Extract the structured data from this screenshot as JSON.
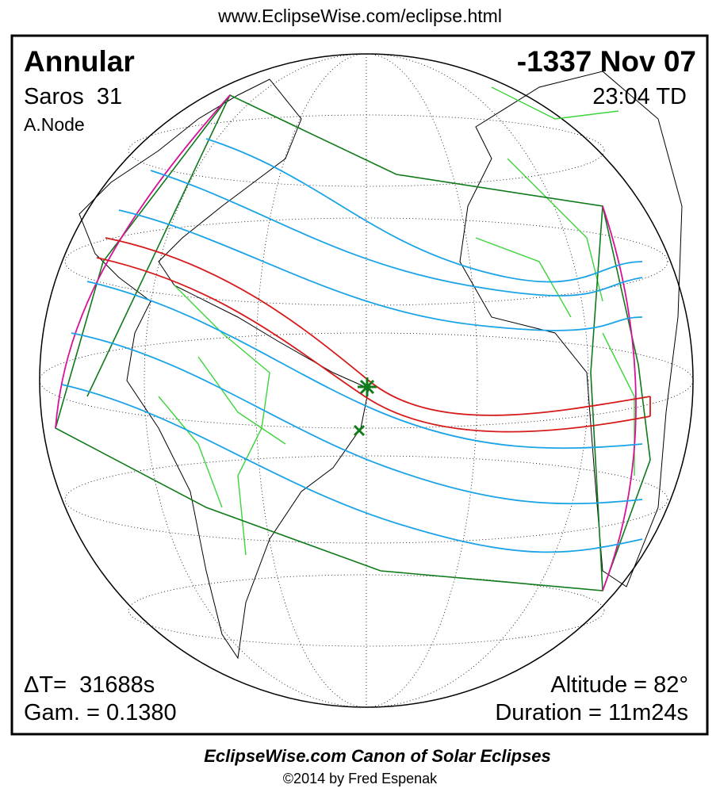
{
  "header": {
    "url": "www.EclipseWise.com/eclipse.html"
  },
  "map": {
    "eclipse_type": "Annular",
    "date": "-1337 Nov 07",
    "saros": "Saros  31",
    "time": "23:04 TD",
    "node": "A.Node",
    "delta_t": "ΔT=  31688s",
    "gamma": "Gam. = 0.1380",
    "altitude": "Altitude = 82°",
    "duration": "Duration = 11m24s"
  },
  "footer": {
    "title": "EclipseWise.com Canon of Solar Eclipses",
    "copyright": "©2014 by Fred Espenak"
  }
}
